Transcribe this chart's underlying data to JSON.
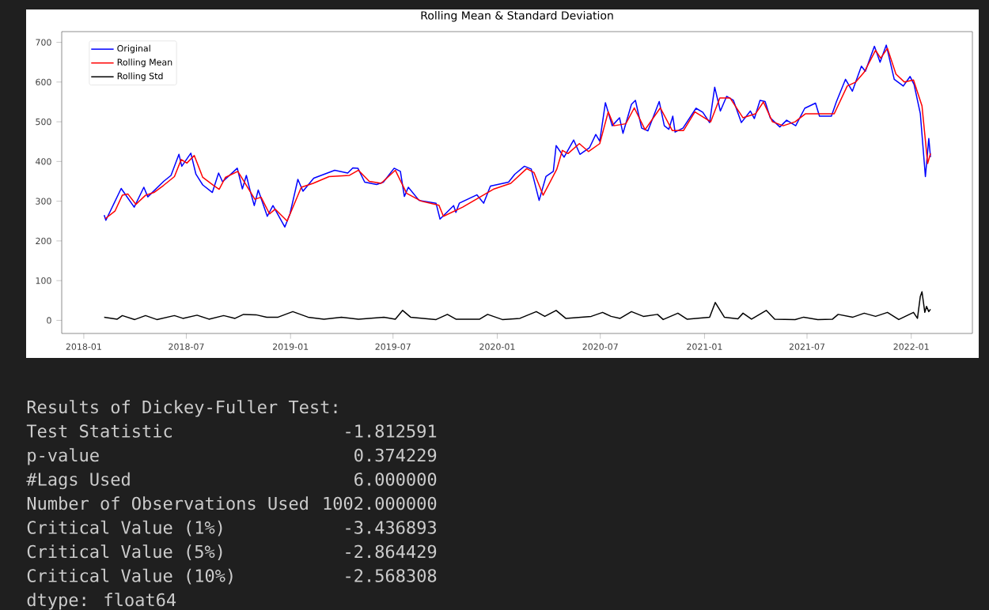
{
  "chart_data": {
    "type": "line",
    "title": "Rolling Mean & Standard Deviation",
    "xlim": [
      "2017-11-23",
      "2022-04-19"
    ],
    "xticks": [
      "2018-01",
      "2018-07",
      "2019-01",
      "2019-07",
      "2020-01",
      "2020-07",
      "2021-01",
      "2021-07",
      "2022-01"
    ],
    "ylim": [
      -33,
      727
    ],
    "yticks": [
      0,
      100,
      200,
      300,
      400,
      500,
      600,
      700
    ],
    "legend": "top left",
    "line_style": "solid",
    "series": [
      {
        "name": "Original",
        "color": "#0000ff",
        "x": [
          "2018-02-06",
          "2018-02-09",
          "2018-03-08",
          "2018-03-31",
          "2018-04-17",
          "2018-04-24",
          "2018-05-22",
          "2018-06-04",
          "2018-06-18",
          "2018-06-23",
          "2018-07-09",
          "2018-07-18",
          "2018-07-30",
          "2018-08-16",
          "2018-08-27",
          "2018-09-03",
          "2018-09-29",
          "2018-10-08",
          "2018-10-15",
          "2018-10-22",
          "2018-10-29",
          "2018-11-05",
          "2018-11-21",
          "2018-12-01",
          "2018-12-22",
          "2018-12-31",
          "2019-01-14",
          "2019-01-23",
          "2019-02-11",
          "2019-03-20",
          "2019-04-12",
          "2019-04-21",
          "2019-04-30",
          "2019-05-12",
          "2019-06-02",
          "2019-06-14",
          "2019-07-03",
          "2019-07-14",
          "2019-07-21",
          "2019-07-28",
          "2019-08-16",
          "2019-09-15",
          "2019-09-22",
          "2019-10-16",
          "2019-10-20",
          "2019-10-26",
          "2019-11-26",
          "2019-12-08",
          "2019-12-20",
          "2020-01-21",
          "2020-02-01",
          "2020-02-18",
          "2020-03-01",
          "2020-03-15",
          "2020-03-27",
          "2020-04-09",
          "2020-04-14",
          "2020-04-28",
          "2020-05-15",
          "2020-05-26",
          "2020-06-12",
          "2020-06-23",
          "2020-06-30",
          "2020-07-10",
          "2020-07-22",
          "2020-08-04",
          "2020-08-10",
          "2020-08-25",
          "2020-09-01",
          "2020-09-12",
          "2020-09-23",
          "2020-10-13",
          "2020-10-22",
          "2020-10-30",
          "2020-11-06",
          "2020-11-10",
          "2020-11-24",
          "2020-12-17",
          "2020-12-29",
          "2021-01-10",
          "2021-01-19",
          "2021-01-29",
          "2021-02-09",
          "2021-02-21",
          "2021-03-07",
          "2021-03-23",
          "2021-03-30",
          "2021-04-09",
          "2021-04-18",
          "2021-04-27",
          "2021-05-14",
          "2021-05-26",
          "2021-06-11",
          "2021-06-27",
          "2021-07-16",
          "2021-07-23",
          "2021-08-13",
          "2021-08-22",
          "2021-09-07",
          "2021-09-19",
          "2021-10-05",
          "2021-10-12",
          "2021-10-28",
          "2021-11-07",
          "2021-11-18",
          "2021-12-02",
          "2021-12-18",
          "2021-12-30",
          "2022-01-06",
          "2022-01-17",
          "2022-01-26",
          "2022-02-01",
          "2022-02-04"
        ],
        "values": [
          265,
          252,
          332,
          285,
          335,
          311,
          350,
          365,
          418,
          388,
          421,
          368,
          341,
          322,
          371,
          349,
          383,
          331,
          365,
          325,
          289,
          328,
          262,
          289,
          235,
          268,
          355,
          325,
          358,
          378,
          371,
          384,
          383,
          348,
          342,
          348,
          383,
          375,
          312,
          335,
          302,
          295,
          255,
          289,
          272,
          295,
          316,
          295,
          338,
          348,
          368,
          388,
          381,
          302,
          362,
          375,
          440,
          411,
          454,
          418,
          435,
          468,
          451,
          548,
          490,
          510,
          471,
          544,
          554,
          484,
          477,
          551,
          490,
          481,
          514,
          474,
          484,
          534,
          524,
          498,
          587,
          527,
          564,
          554,
          498,
          527,
          508,
          554,
          551,
          510,
          487,
          504,
          490,
          534,
          547,
          514,
          514,
          551,
          607,
          577,
          640,
          627,
          690,
          650,
          693,
          607,
          590,
          614,
          594,
          521,
          362,
          458,
          411
        ]
      },
      {
        "name": "Rolling Mean",
        "color": "#ff0000",
        "x": [
          "2018-02-08",
          "2018-02-25",
          "2018-03-10",
          "2018-03-20",
          "2018-04-03",
          "2018-04-20",
          "2018-05-05",
          "2018-05-22",
          "2018-06-10",
          "2018-06-22",
          "2018-07-02",
          "2018-07-15",
          "2018-07-30",
          "2018-08-18",
          "2018-08-28",
          "2018-09-08",
          "2018-09-30",
          "2018-10-15",
          "2018-10-30",
          "2018-11-10",
          "2018-11-25",
          "2018-12-05",
          "2018-12-26",
          "2019-01-20",
          "2019-02-10",
          "2019-03-10",
          "2019-04-15",
          "2019-05-01",
          "2019-05-20",
          "2019-06-10",
          "2019-07-05",
          "2019-07-25",
          "2019-08-20",
          "2019-09-20",
          "2019-09-28",
          "2019-11-01",
          "2019-12-01",
          "2019-12-25",
          "2020-01-25",
          "2020-02-22",
          "2020-03-06",
          "2020-03-22",
          "2020-04-15",
          "2020-04-25",
          "2020-05-05",
          "2020-05-25",
          "2020-06-10",
          "2020-06-30",
          "2020-07-15",
          "2020-07-25",
          "2020-08-15",
          "2020-08-30",
          "2020-09-18",
          "2020-10-15",
          "2020-11-05",
          "2020-11-25",
          "2020-12-15",
          "2021-01-12",
          "2021-01-28",
          "2021-02-15",
          "2021-03-10",
          "2021-04-01",
          "2021-04-15",
          "2021-05-01",
          "2021-05-20",
          "2021-06-10",
          "2021-06-28",
          "2021-07-20",
          "2021-08-18",
          "2021-09-10",
          "2021-09-25",
          "2021-10-10",
          "2021-10-30",
          "2021-11-08",
          "2021-11-20",
          "2021-12-05",
          "2021-12-20",
          "2022-01-05",
          "2022-01-20",
          "2022-01-30",
          "2022-02-04"
        ],
        "values": [
          256,
          275,
          315,
          318,
          292,
          315,
          322,
          340,
          362,
          405,
          396,
          415,
          360,
          340,
          330,
          360,
          375,
          340,
          305,
          310,
          268,
          280,
          250,
          335,
          345,
          362,
          365,
          378,
          350,
          345,
          378,
          320,
          300,
          290,
          262,
          285,
          310,
          330,
          345,
          382,
          372,
          315,
          380,
          428,
          420,
          445,
          425,
          445,
          525,
          490,
          495,
          535,
          480,
          535,
          478,
          478,
          525,
          500,
          560,
          560,
          510,
          520,
          550,
          500,
          490,
          500,
          520,
          520,
          520,
          590,
          600,
          625,
          680,
          660,
          685,
          620,
          600,
          605,
          540,
          395,
          420
        ]
      },
      {
        "name": "Rolling Std",
        "color": "#000000",
        "x": [
          "2018-02-06",
          "2018-03-01",
          "2018-03-10",
          "2018-04-01",
          "2018-04-20",
          "2018-05-10",
          "2018-06-10",
          "2018-06-25",
          "2018-07-20",
          "2018-08-10",
          "2018-09-05",
          "2018-09-25",
          "2018-10-10",
          "2018-11-01",
          "2018-11-20",
          "2018-12-10",
          "2019-01-05",
          "2019-02-01",
          "2019-03-01",
          "2019-04-01",
          "2019-05-01",
          "2019-06-15",
          "2019-07-05",
          "2019-07-18",
          "2019-08-01",
          "2019-09-15",
          "2019-10-05",
          "2019-10-20",
          "2019-12-01",
          "2019-12-15",
          "2020-01-10",
          "2020-02-10",
          "2020-03-10",
          "2020-03-25",
          "2020-04-14",
          "2020-05-01",
          "2020-06-15",
          "2020-07-05",
          "2020-07-20",
          "2020-08-05",
          "2020-08-25",
          "2020-09-15",
          "2020-10-10",
          "2020-10-20",
          "2020-11-15",
          "2020-12-01",
          "2021-01-10",
          "2021-01-20",
          "2021-02-05",
          "2021-03-01",
          "2021-03-10",
          "2021-03-25",
          "2021-04-20",
          "2021-05-05",
          "2021-06-10",
          "2021-06-25",
          "2021-07-20",
          "2021-08-15",
          "2021-08-25",
          "2021-09-20",
          "2021-10-10",
          "2021-10-30",
          "2021-11-20",
          "2021-12-10",
          "2022-01-05",
          "2022-01-12",
          "2022-01-17",
          "2022-01-20",
          "2022-01-25",
          "2022-01-28",
          "2022-02-01",
          "2022-02-04"
        ],
        "values": [
          8,
          3,
          12,
          2,
          12,
          2,
          12,
          5,
          13,
          3,
          12,
          5,
          15,
          14,
          8,
          8,
          22,
          8,
          3,
          8,
          3,
          8,
          3,
          25,
          8,
          2,
          15,
          3,
          3,
          15,
          2,
          5,
          22,
          10,
          25,
          5,
          10,
          20,
          10,
          5,
          22,
          10,
          15,
          2,
          18,
          3,
          8,
          45,
          8,
          4,
          18,
          3,
          25,
          3,
          2,
          8,
          2,
          3,
          15,
          8,
          18,
          10,
          20,
          2,
          20,
          5,
          60,
          72,
          20,
          35,
          22,
          28
        ]
      }
    ],
    "annotations": [
      "Results of Dickey-Fuller Test:",
      "Test Statistic",
      "-1.812591",
      "p-value",
      "0.374229",
      "#Lags Used",
      "6.000000",
      "Number of Observations Used",
      "1002.000000",
      "Critical Value (1%)",
      "-3.436893",
      "Critical Value (5%)",
      "-2.864429",
      "Critical Value (10%)",
      "-2.568308",
      "dtype: float64"
    ]
  }
}
